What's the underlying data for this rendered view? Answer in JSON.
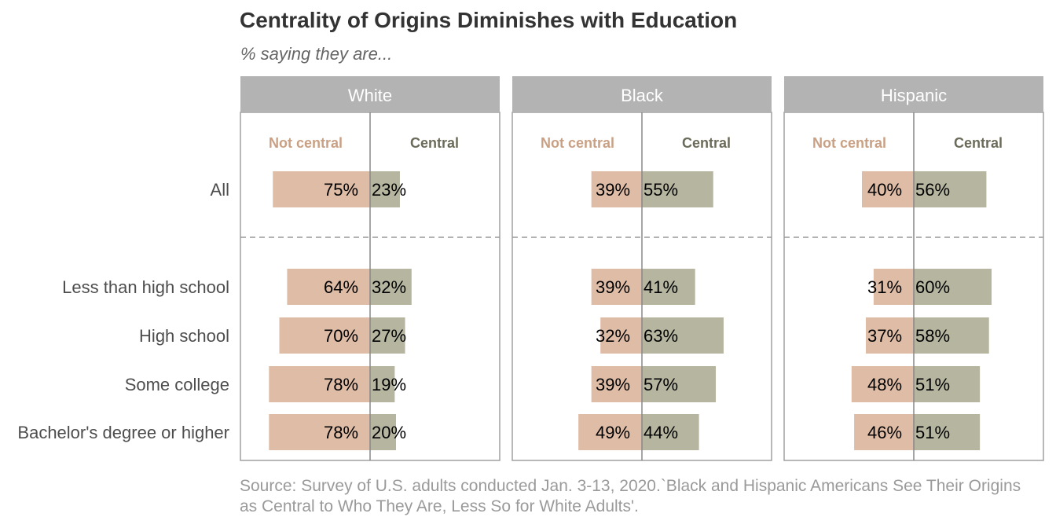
{
  "title": "Centrality of Origins Diminishes with Education",
  "subtitle": "% saying they are...",
  "source": "Source: Survey of U.S. adults conducted Jan. 3-13, 2020.`Black and Hispanic Americans See Their Origins as Central to Who They Are, Less So for White Adults'.",
  "colors": {
    "not_central": "#dfbca6",
    "central": "#b5b5a0",
    "not_central_label": "#c9a084",
    "central_label": "#6b6b5a",
    "panel_header": "#b3b3b3",
    "panel_border": "#a0a0a0",
    "row_label": "#4d4d4d"
  },
  "chart_data": {
    "type": "bar",
    "subtype": "diverging-horizontal-faceted",
    "categories": [
      "All",
      "Less than high school",
      "High school",
      "Some college",
      "Bachelor's degree or higher"
    ],
    "column_labels": {
      "not_central": "Not central",
      "central": "Central"
    },
    "value_suffix": "%",
    "panels": [
      {
        "name": "White",
        "not_central": [
          75,
          64,
          70,
          78,
          78
        ],
        "central": [
          23,
          32,
          27,
          19,
          20
        ]
      },
      {
        "name": "Black",
        "not_central": [
          39,
          39,
          32,
          39,
          49
        ],
        "central": [
          55,
          41,
          63,
          57,
          44
        ]
      },
      {
        "name": "Hispanic",
        "not_central": [
          40,
          31,
          37,
          48,
          46
        ],
        "central": [
          56,
          60,
          58,
          51,
          51
        ]
      }
    ]
  }
}
